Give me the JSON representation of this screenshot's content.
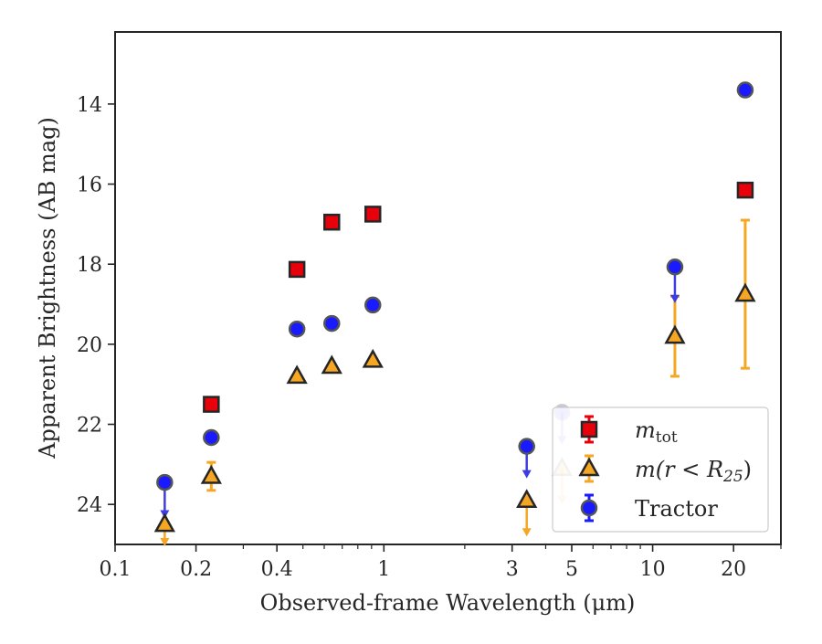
{
  "colors": {
    "total": "#e8000b",
    "aperture": "#f5a623",
    "tractor": "#1a1aff",
    "tractor_arrow": "#3d3de0",
    "edge": "#262626"
  },
  "chart_data": {
    "type": "scatter",
    "title": "",
    "xlabel": "Observed-frame Wavelength (μm)",
    "ylabel": "Apparent Brightness (AB mag)",
    "xscale": "log",
    "xlim": [
      0.1,
      30
    ],
    "ylim": [
      25,
      12.2
    ],
    "y_inverted": true,
    "xticks": [
      {
        "value": 0.1,
        "label": "0.1"
      },
      {
        "value": 0.2,
        "label": "0.2"
      },
      {
        "value": 0.4,
        "label": "0.4"
      },
      {
        "value": 1,
        "label": "1"
      },
      {
        "value": 3,
        "label": "3"
      },
      {
        "value": 5,
        "label": "5"
      },
      {
        "value": 10,
        "label": "10"
      },
      {
        "value": 20,
        "label": "20"
      }
    ],
    "yticks": [
      {
        "value": 14,
        "label": "14"
      },
      {
        "value": 16,
        "label": "16"
      },
      {
        "value": 18,
        "label": "18"
      },
      {
        "value": 20,
        "label": "20"
      },
      {
        "value": 22,
        "label": "22"
      },
      {
        "value": 24,
        "label": "24"
      }
    ],
    "legend_position": "lower-right",
    "series": [
      {
        "name": "m_tot",
        "legend_main": "m",
        "legend_sub": "tot",
        "marker": "square",
        "color": "#e8000b",
        "points": [
          {
            "x": 0.228,
            "y": 21.5
          },
          {
            "x": 0.475,
            "y": 18.13
          },
          {
            "x": 0.64,
            "y": 16.95
          },
          {
            "x": 0.91,
            "y": 16.75
          },
          {
            "x": 22.1,
            "y": 16.15
          }
        ]
      },
      {
        "name": "m(r<R25)",
        "legend_main": "m(r < R",
        "legend_sub": "25",
        "legend_tail": ")",
        "marker": "triangle",
        "color": "#f5a623",
        "points": [
          {
            "x": 0.153,
            "y": 24.5,
            "err_low": 0.8,
            "err_high": 0
          },
          {
            "x": 0.228,
            "y": 23.3,
            "err_low": 0.35,
            "err_high": 0.35
          },
          {
            "x": 0.475,
            "y": 20.8
          },
          {
            "x": 0.64,
            "y": 20.55
          },
          {
            "x": 0.91,
            "y": 20.4
          },
          {
            "x": 3.4,
            "y": 23.9,
            "err_low": 0.9,
            "err_high": 0,
            "upper_limit": true
          },
          {
            "x": 4.6,
            "y": 23.1,
            "err_low": 0.9,
            "err_high": 0,
            "upper_limit": true,
            "faded": true
          },
          {
            "x": 12.1,
            "y": 19.8,
            "err_low": 1.0,
            "err_high": 1.0
          },
          {
            "x": 22.1,
            "y": 18.75,
            "err_low": 1.85,
            "err_high": 1.85
          }
        ]
      },
      {
        "name": "Tractor",
        "legend_main": "Tractor",
        "marker": "circle",
        "color": "#1a1aff",
        "points": [
          {
            "x": 0.153,
            "y": 23.45,
            "err_low": 0.9,
            "err_high": 0,
            "upper_limit": true
          },
          {
            "x": 0.228,
            "y": 22.33
          },
          {
            "x": 0.475,
            "y": 19.62
          },
          {
            "x": 0.64,
            "y": 19.48
          },
          {
            "x": 0.91,
            "y": 19.02
          },
          {
            "x": 3.4,
            "y": 22.55,
            "err_low": 0.8,
            "err_high": 0,
            "upper_limit": true
          },
          {
            "x": 4.6,
            "y": 21.7,
            "err_low": 0.8,
            "err_high": 0,
            "upper_limit": true,
            "faded": true
          },
          {
            "x": 12.1,
            "y": 18.07,
            "err_low": 0.9,
            "err_high": 0,
            "upper_limit": true
          },
          {
            "x": 22.1,
            "y": 13.65
          }
        ]
      }
    ]
  }
}
